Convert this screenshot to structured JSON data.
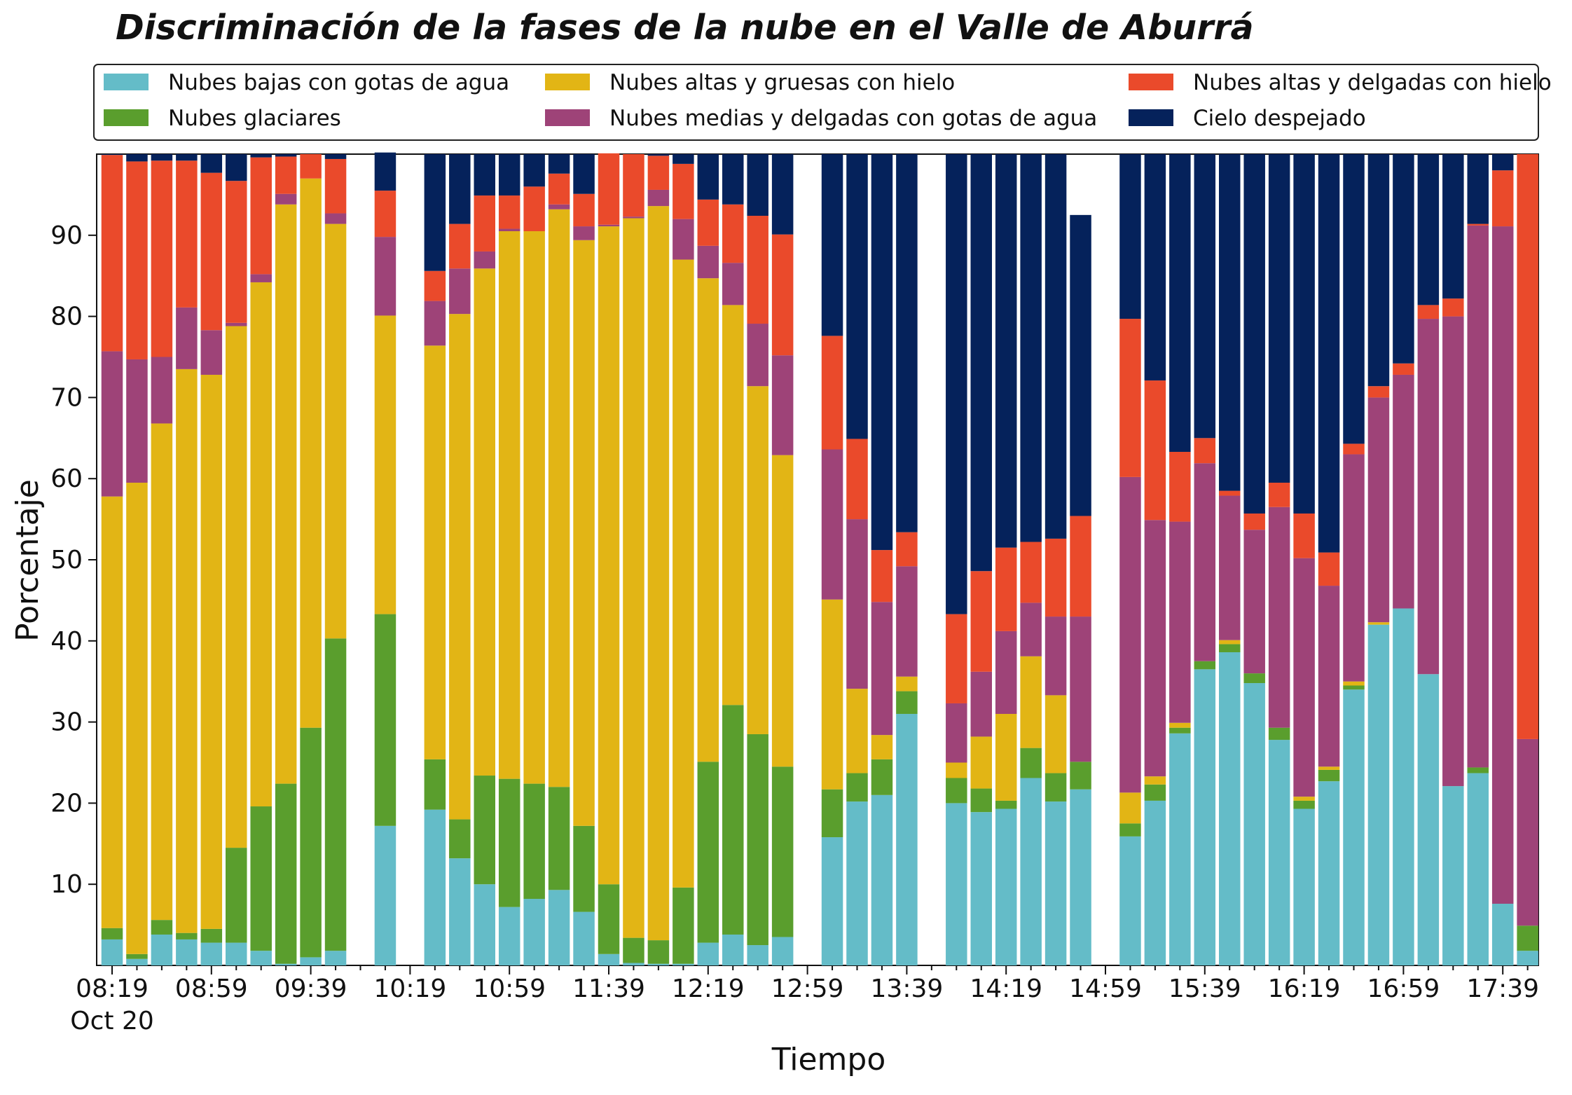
{
  "chart_data": {
    "type": "bar",
    "stacked": true,
    "title": "Discriminación de la fases de la nube en el Valle de Aburrá",
    "xlabel": "Tiempo",
    "ylabel": "Porcentaje",
    "ylim": [
      0,
      100
    ],
    "yticks": [
      10,
      20,
      30,
      40,
      50,
      60,
      70,
      80,
      90
    ],
    "xtick_labels": [
      "08:19",
      "08:59",
      "09:39",
      "10:19",
      "10:59",
      "11:39",
      "12:19",
      "12:59",
      "13:39",
      "14:19",
      "14:59",
      "15:39",
      "16:19",
      "16:59",
      "17:39"
    ],
    "xtick_date_label": "Oct 20",
    "legend_placement": "top (above plot)",
    "grid": false,
    "x": [
      "08:19",
      "08:29",
      "08:39",
      "08:49",
      "08:59",
      "09:09",
      "09:19",
      "09:29",
      "09:39",
      "09:49",
      "09:59",
      "10:09",
      "10:19",
      "10:29",
      "10:39",
      "10:49",
      "10:59",
      "11:09",
      "11:19",
      "11:29",
      "11:39",
      "11:49",
      "11:59",
      "12:09",
      "12:19",
      "12:29",
      "12:39",
      "12:49",
      "12:59",
      "13:09",
      "13:19",
      "13:29",
      "13:39",
      "13:49",
      "13:59",
      "14:09",
      "14:19",
      "14:29",
      "14:39",
      "14:49",
      "14:59",
      "15:09",
      "15:19",
      "15:29",
      "15:39",
      "15:49",
      "15:59",
      "16:09",
      "16:19",
      "16:29",
      "16:39",
      "16:49",
      "16:59",
      "17:09",
      "17:19",
      "17:29",
      "17:39",
      "17:49"
    ],
    "series": [
      {
        "name": "Nubes bajas con gotas de agua",
        "color": "#64bcc8",
        "values": [
          3.2,
          0.8,
          3.8,
          3.2,
          2.8,
          2.8,
          1.8,
          0.2,
          1.0,
          1.8,
          null,
          17.2,
          null,
          19.2,
          13.2,
          10.0,
          7.2,
          8.2,
          9.3,
          6.6,
          1.4,
          0.3,
          0.2,
          0.2,
          2.8,
          3.8,
          2.5,
          3.5,
          null,
          15.8,
          20.2,
          21.0,
          31.0,
          null,
          20.0,
          18.9,
          19.3,
          23.1,
          20.2,
          21.7,
          null,
          15.9,
          20.3,
          28.6,
          36.5,
          38.6,
          34.8,
          27.8,
          19.3,
          22.7,
          34.0,
          42.0,
          44.0,
          35.9,
          22.1,
          23.7,
          7.6,
          1.8
        ]
      },
      {
        "name": "Nubes glaciares",
        "color": "#5a9e2d",
        "values": [
          1.4,
          0.6,
          1.8,
          0.8,
          1.7,
          11.7,
          17.8,
          22.2,
          28.3,
          38.5,
          null,
          26.1,
          null,
          6.2,
          4.8,
          13.4,
          15.8,
          14.2,
          12.7,
          10.6,
          8.6,
          3.1,
          2.9,
          9.4,
          22.3,
          28.3,
          26.0,
          21.0,
          null,
          5.9,
          3.5,
          4.4,
          2.8,
          null,
          3.1,
          2.9,
          1.0,
          3.7,
          3.5,
          3.4,
          null,
          1.6,
          2.0,
          0.7,
          1.0,
          1.0,
          1.2,
          1.5,
          1.0,
          1.4,
          0.5,
          0.0,
          0.0,
          0.0,
          0.0,
          0.7,
          0.0,
          3.1
        ]
      },
      {
        "name": "Nubes altas y gruesas con hielo",
        "color": "#e2b515",
        "values": [
          53.2,
          58.1,
          61.2,
          69.5,
          68.3,
          64.3,
          64.6,
          71.4,
          67.7,
          51.1,
          null,
          36.8,
          null,
          51.0,
          62.3,
          62.5,
          67.5,
          68.1,
          71.2,
          72.2,
          81.1,
          88.7,
          90.5,
          77.4,
          59.6,
          49.3,
          42.9,
          38.4,
          null,
          23.4,
          10.4,
          3.0,
          1.8,
          null,
          1.9,
          6.4,
          10.7,
          11.3,
          9.6,
          0.0,
          null,
          3.8,
          1.0,
          0.6,
          0.0,
          0.5,
          0.0,
          0.0,
          0.5,
          0.4,
          0.5,
          0.3,
          0.0,
          0.0,
          0.0,
          0.0,
          0.0,
          0.0
        ]
      },
      {
        "name": "Nubes medias y delgadas con gotas de agua",
        "color": "#9e4378",
        "values": [
          17.9,
          15.2,
          8.2,
          7.6,
          5.5,
          0.4,
          1.0,
          1.3,
          0.0,
          1.3,
          null,
          9.7,
          null,
          5.5,
          5.6,
          2.1,
          0.3,
          0.0,
          0.6,
          1.7,
          0.2,
          0.2,
          2.0,
          5.0,
          4.0,
          5.2,
          7.7,
          12.3,
          null,
          18.5,
          20.9,
          16.4,
          13.6,
          null,
          7.3,
          8.0,
          10.2,
          6.6,
          9.7,
          17.9,
          null,
          38.9,
          31.6,
          24.8,
          24.4,
          17.8,
          17.7,
          27.2,
          29.4,
          22.3,
          28.0,
          27.7,
          28.8,
          43.8,
          57.9,
          66.8,
          83.5,
          23.0
        ]
      },
      {
        "name": "Nubes altas y delgadas con hielo",
        "color": "#ea4a2b",
        "values": [
          24.2,
          24.4,
          24.2,
          18.1,
          19.4,
          17.5,
          14.4,
          4.6,
          3.0,
          6.7,
          null,
          5.7,
          null,
          3.7,
          5.5,
          6.9,
          4.1,
          5.5,
          3.8,
          4.0,
          8.8,
          7.7,
          4.2,
          6.8,
          5.7,
          7.2,
          13.3,
          14.9,
          null,
          14.0,
          9.9,
          6.4,
          4.2,
          null,
          11.0,
          12.4,
          10.3,
          7.5,
          9.6,
          12.4,
          null,
          19.5,
          17.2,
          8.6,
          3.1,
          0.6,
          2.0,
          3.0,
          5.5,
          4.1,
          1.3,
          1.4,
          1.4,
          1.7,
          2.2,
          0.2,
          6.9,
          72.1
        ]
      },
      {
        "name": "Cielo despejado",
        "color": "#05225b",
        "values": [
          0.1,
          0.9,
          0.8,
          0.8,
          2.3,
          3.3,
          0.4,
          0.3,
          0.0,
          0.6,
          null,
          4.7,
          null,
          14.4,
          8.6,
          5.1,
          5.1,
          4.0,
          2.4,
          4.9,
          0.0,
          0.0,
          0.2,
          1.2,
          5.6,
          6.2,
          7.6,
          9.9,
          null,
          22.4,
          35.1,
          48.8,
          46.6,
          null,
          56.7,
          51.4,
          48.5,
          47.8,
          47.4,
          37.1,
          null,
          20.3,
          27.9,
          36.7,
          35.0,
          41.5,
          44.3,
          40.5,
          44.3,
          49.1,
          35.7,
          28.6,
          25.8,
          18.6,
          17.8,
          8.6,
          2.0,
          0.0
        ]
      }
    ]
  }
}
